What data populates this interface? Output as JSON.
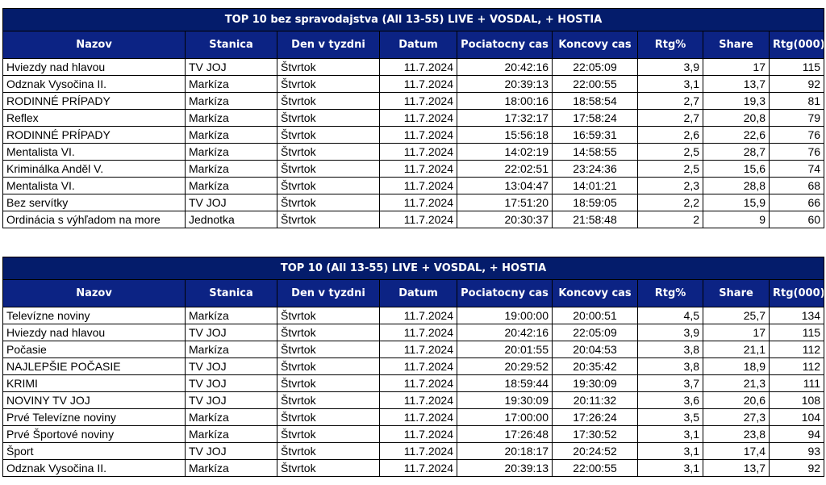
{
  "columns": [
    "Nazov",
    "Stanica",
    "Den v tyzdni",
    "Datum",
    "Pociatocny cas",
    "Koncovy cas",
    "Rtg%",
    "Share",
    "Rtg(000)"
  ],
  "table1": {
    "title": "TOP 10 bez spravodajstva (All 13-55) LIVE + VOSDAL, + HOSTIA",
    "rows": [
      [
        "Hviezdy nad hlavou",
        "TV JOJ",
        "Štvrtok",
        "11.7.2024",
        "20:42:16",
        "22:05:09",
        "3,9",
        "17",
        "115"
      ],
      [
        "Odznak Vysočina II.",
        "Markíza",
        "Štvrtok",
        "11.7.2024",
        "20:39:13",
        "22:00:55",
        "3,1",
        "13,7",
        "92"
      ],
      [
        "RODINNÉ PRÍPADY",
        "Markíza",
        "Štvrtok",
        "11.7.2024",
        "18:00:16",
        "18:58:54",
        "2,7",
        "19,3",
        "81"
      ],
      [
        "Reflex",
        "Markíza",
        "Štvrtok",
        "11.7.2024",
        "17:32:17",
        "17:58:24",
        "2,7",
        "20,8",
        "79"
      ],
      [
        "RODINNÉ PRÍPADY",
        "Markíza",
        "Štvrtok",
        "11.7.2024",
        "15:56:18",
        "16:59:31",
        "2,6",
        "22,6",
        "76"
      ],
      [
        "Mentalista VI.",
        "Markíza",
        "Štvrtok",
        "11.7.2024",
        "14:02:19",
        "14:58:55",
        "2,5",
        "28,7",
        "76"
      ],
      [
        "Kriminálka Anděl V.",
        "Markíza",
        "Štvrtok",
        "11.7.2024",
        "22:02:51",
        "23:24:36",
        "2,5",
        "15,6",
        "74"
      ],
      [
        "Mentalista VI.",
        "Markíza",
        "Štvrtok",
        "11.7.2024",
        "13:04:47",
        "14:01:21",
        "2,3",
        "28,8",
        "68"
      ],
      [
        "Bez servítky",
        "TV JOJ",
        "Štvrtok",
        "11.7.2024",
        "17:51:20",
        "18:59:05",
        "2,2",
        "15,9",
        "66"
      ],
      [
        "Ordinácia s výhľadom na more",
        "Jednotka",
        "Štvrtok",
        "11.7.2024",
        "20:30:37",
        "21:58:48",
        "2",
        "9",
        "60"
      ]
    ]
  },
  "table2": {
    "title": "TOP 10 (All 13-55) LIVE + VOSDAL, + HOSTIA",
    "rows": [
      [
        "Televízne noviny",
        "Markíza",
        "Štvrtok",
        "11.7.2024",
        "19:00:00",
        "20:00:51",
        "4,5",
        "25,7",
        "134"
      ],
      [
        "Hviezdy nad hlavou",
        "TV JOJ",
        "Štvrtok",
        "11.7.2024",
        "20:42:16",
        "22:05:09",
        "3,9",
        "17",
        "115"
      ],
      [
        "Počasie",
        "Markíza",
        "Štvrtok",
        "11.7.2024",
        "20:01:55",
        "20:04:53",
        "3,8",
        "21,1",
        "112"
      ],
      [
        "NAJLEPŠIE POČASIE",
        "TV JOJ",
        "Štvrtok",
        "11.7.2024",
        "20:29:52",
        "20:35:42",
        "3,8",
        "18,9",
        "112"
      ],
      [
        "KRIMI",
        "TV JOJ",
        "Štvrtok",
        "11.7.2024",
        "18:59:44",
        "19:30:09",
        "3,7",
        "21,3",
        "111"
      ],
      [
        "NOVINY TV JOJ",
        "TV JOJ",
        "Štvrtok",
        "11.7.2024",
        "19:30:09",
        "20:11:32",
        "3,6",
        "20,6",
        "108"
      ],
      [
        "Prvé Televízne noviny",
        "Markíza",
        "Štvrtok",
        "11.7.2024",
        "17:00:00",
        "17:26:24",
        "3,5",
        "27,3",
        "104"
      ],
      [
        "Prvé Športové noviny",
        "Markíza",
        "Štvrtok",
        "11.7.2024",
        "17:26:48",
        "17:30:52",
        "3,1",
        "23,8",
        "94"
      ],
      [
        "Šport",
        "TV JOJ",
        "Štvrtok",
        "11.7.2024",
        "20:18:17",
        "20:24:52",
        "3,1",
        "17,4",
        "93"
      ],
      [
        "Odznak Vysočina II.",
        "Markíza",
        "Štvrtok",
        "11.7.2024",
        "20:39:13",
        "22:00:55",
        "3,1",
        "13,7",
        "92"
      ]
    ]
  }
}
